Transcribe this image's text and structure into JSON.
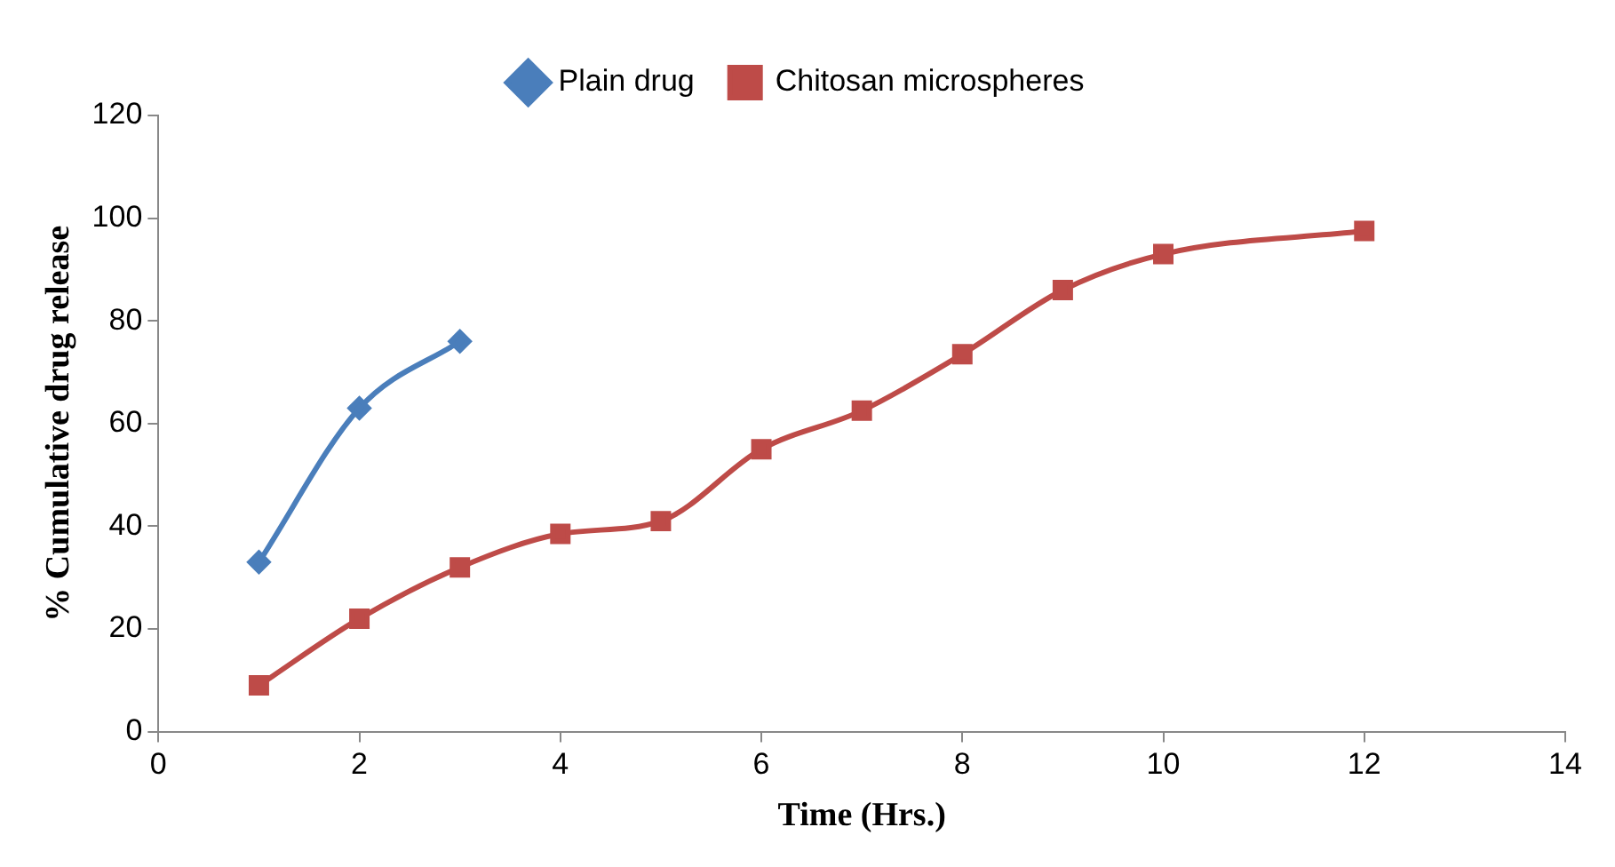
{
  "chart_data": {
    "type": "line",
    "xlabel": "Time (Hrs.)",
    "ylabel": "% Cumulative drug release",
    "xlim": [
      0,
      14
    ],
    "xticks": [
      0,
      2,
      4,
      6,
      8,
      10,
      12,
      14
    ],
    "ylim": [
      0,
      120
    ],
    "yticks": [
      0,
      20,
      40,
      60,
      80,
      100,
      120
    ],
    "grid": false,
    "legend": "top",
    "series": [
      {
        "name": "Plain drug",
        "color": "#4a7ebb",
        "marker": "diamond",
        "x": [
          1,
          2,
          3
        ],
        "values": [
          33,
          63,
          76
        ]
      },
      {
        "name": "Chitosan microspheres",
        "color": "#be4b48",
        "marker": "square",
        "x": [
          1,
          2,
          3,
          4,
          5,
          6,
          7,
          8,
          9,
          10,
          12
        ],
        "values": [
          9,
          22,
          32,
          38.5,
          41,
          55,
          62.5,
          73.5,
          86,
          93,
          97.5
        ]
      }
    ]
  }
}
